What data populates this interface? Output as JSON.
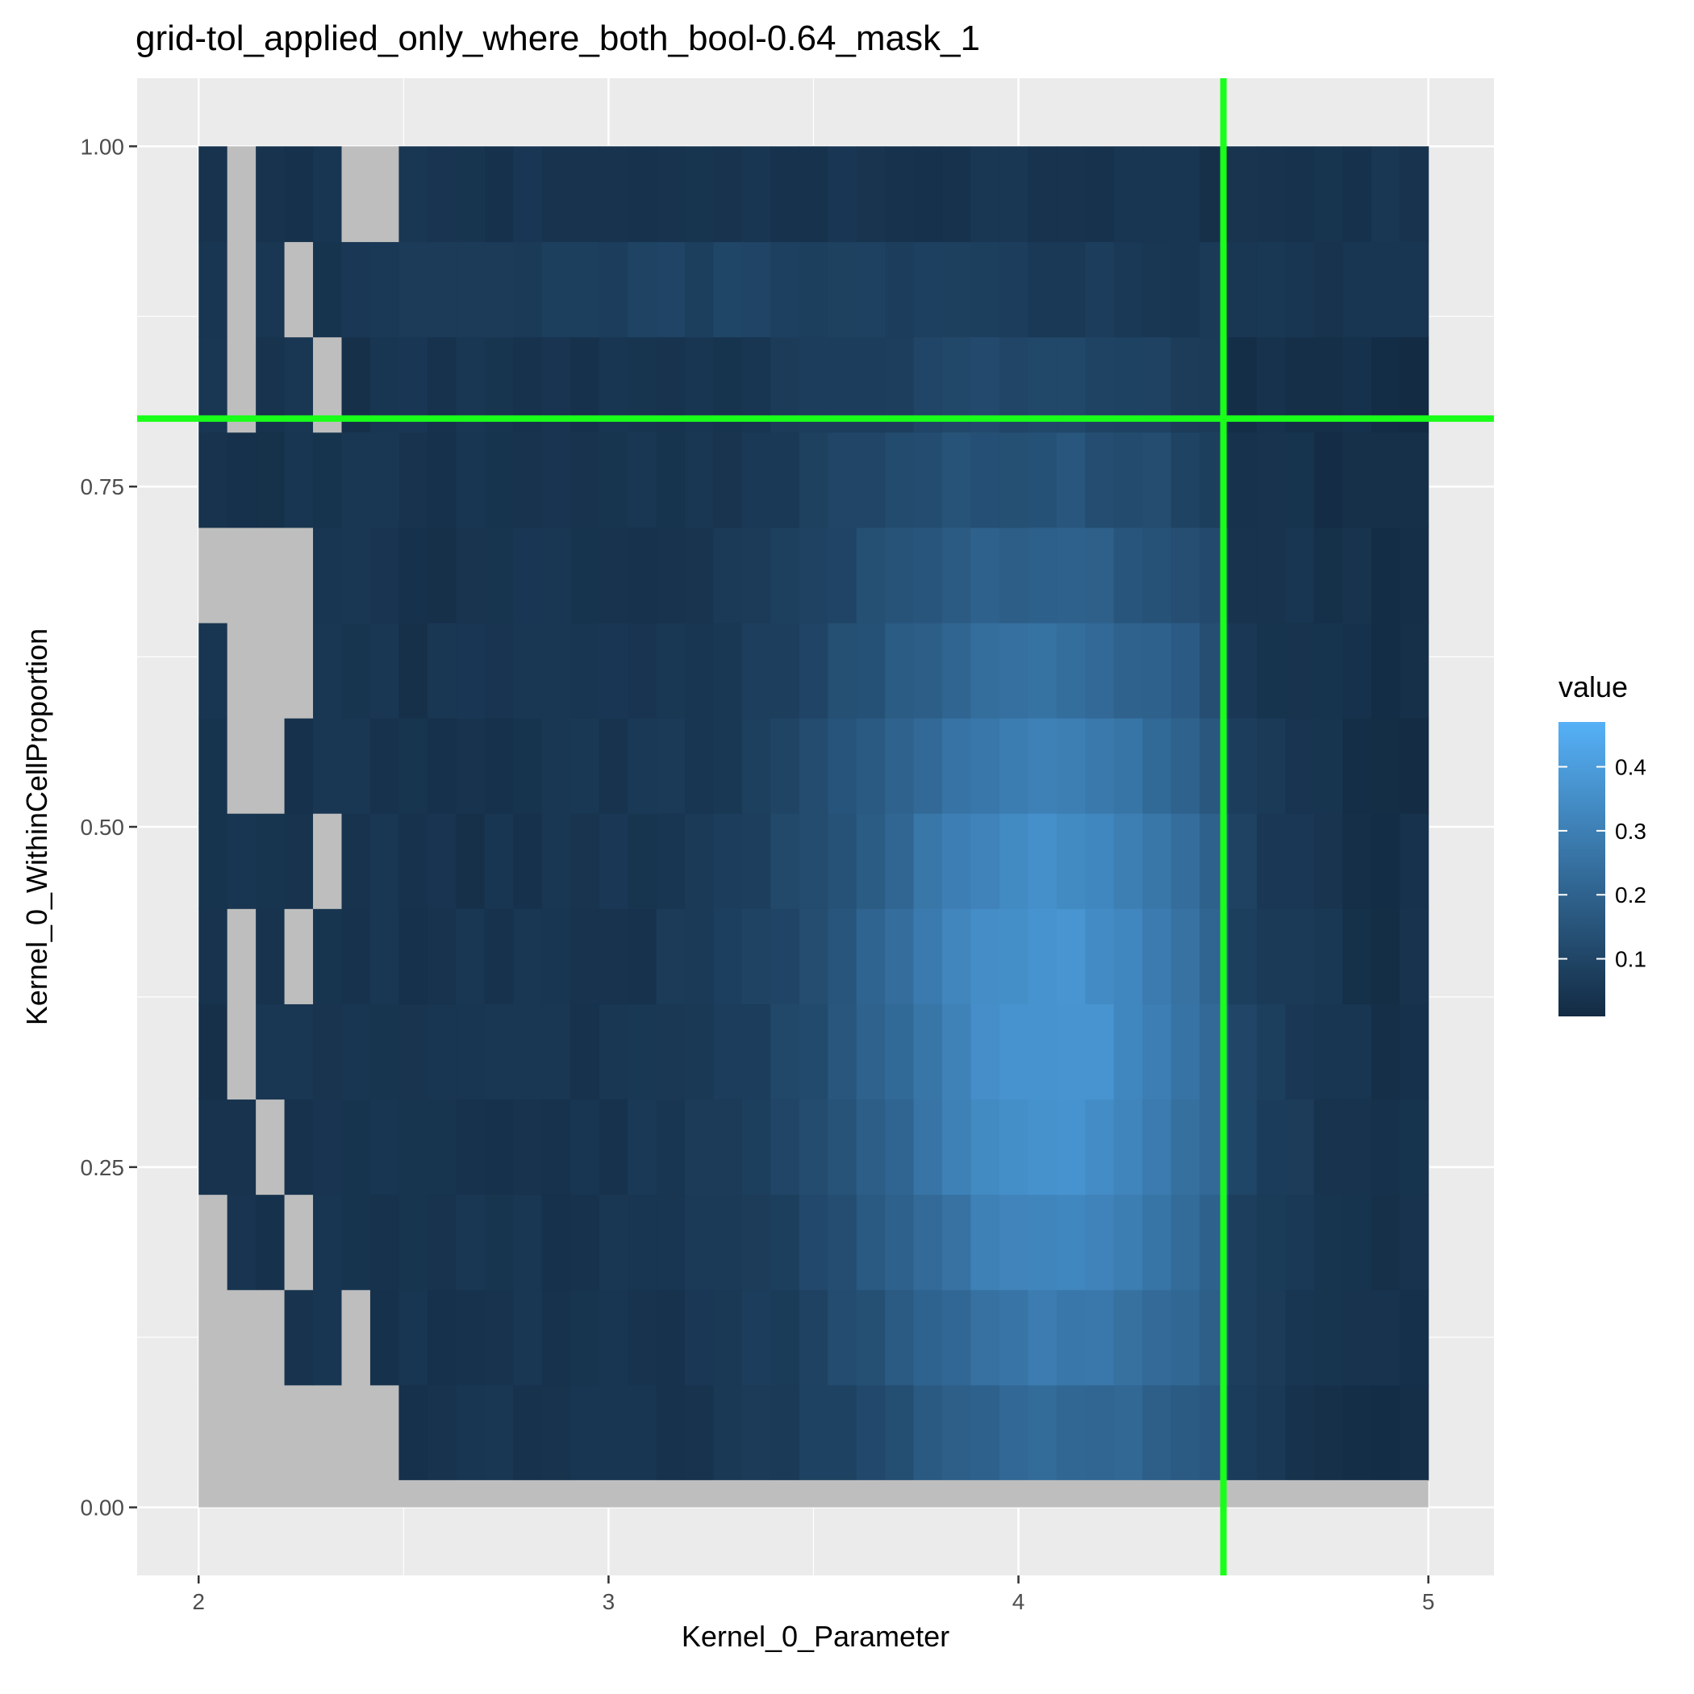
{
  "chart_data": {
    "type": "heatmap",
    "title": "grid-tol_applied_only_where_both_bool-0.64_mask_1",
    "xlabel": "Kernel_0_Parameter",
    "ylabel": "Kernel_0_WithinCellProportion",
    "xlim": [
      1.85,
      5.16
    ],
    "ylim": [
      -0.05,
      1.05
    ],
    "x_ticks": [
      {
        "value": 2,
        "label": "2"
      },
      {
        "value": 3,
        "label": "3"
      },
      {
        "value": 4,
        "label": "4"
      },
      {
        "value": 5,
        "label": "5"
      }
    ],
    "y_ticks": [
      {
        "value": 0.0,
        "label": "0.00"
      },
      {
        "value": 0.25,
        "label": "0.25"
      },
      {
        "value": 0.5,
        "label": "0.50"
      },
      {
        "value": 0.75,
        "label": "0.75"
      },
      {
        "value": 1.0,
        "label": "1.00"
      }
    ],
    "grid": true,
    "x_range": [
      2.0,
      5.0
    ],
    "y_range": [
      0.02,
      1.0
    ],
    "n_cols": 43,
    "n_rows": 14,
    "ref_lines": {
      "vertical_x": 4.5,
      "horizontal_y": 0.8,
      "color": "#1aff1a"
    },
    "legend": {
      "title": "value",
      "position": "right",
      "min": 0.01,
      "max": 0.47,
      "breaks": [
        0.1,
        0.2,
        0.3,
        0.4
      ],
      "break_labels": [
        "0.1",
        "0.2",
        "0.3",
        "0.4"
      ],
      "color_low": "#132b43",
      "color_high": "#56b1f7"
    },
    "na_color": "#bebebe"
  }
}
